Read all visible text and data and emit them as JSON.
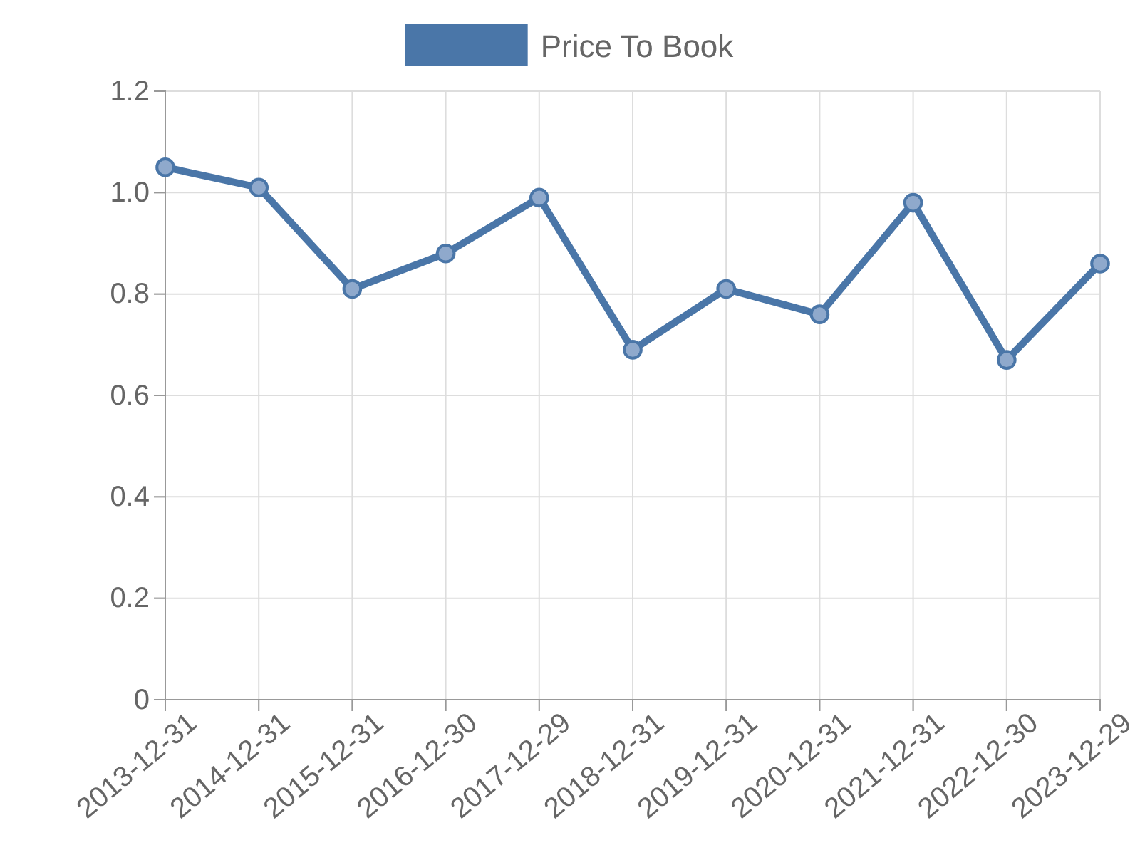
{
  "chart_data": {
    "type": "line",
    "categories": [
      "2013-12-31",
      "2014-12-31",
      "2015-12-31",
      "2016-12-30",
      "2017-12-29",
      "2018-12-31",
      "2019-12-31",
      "2020-12-31",
      "2021-12-31",
      "2022-12-30",
      "2023-12-29"
    ],
    "series": [
      {
        "name": "Price To Book",
        "color": "#4a76a8",
        "values": [
          1.05,
          1.01,
          0.81,
          0.88,
          0.99,
          0.69,
          0.81,
          0.76,
          0.98,
          0.67,
          0.86
        ]
      }
    ],
    "ylim": [
      0,
      1.2
    ],
    "yticks": [
      {
        "value": 0,
        "label": "0"
      },
      {
        "value": 0.2,
        "label": "0.2"
      },
      {
        "value": 0.4,
        "label": "0.4"
      },
      {
        "value": 0.6,
        "label": "0.6"
      },
      {
        "value": 0.8,
        "label": "0.8"
      },
      {
        "value": 1,
        "label": "1.0"
      },
      {
        "value": 1.2,
        "label": "1.2"
      }
    ],
    "grid": true,
    "legend": "top",
    "marker": "circle",
    "line_style": "solid"
  }
}
